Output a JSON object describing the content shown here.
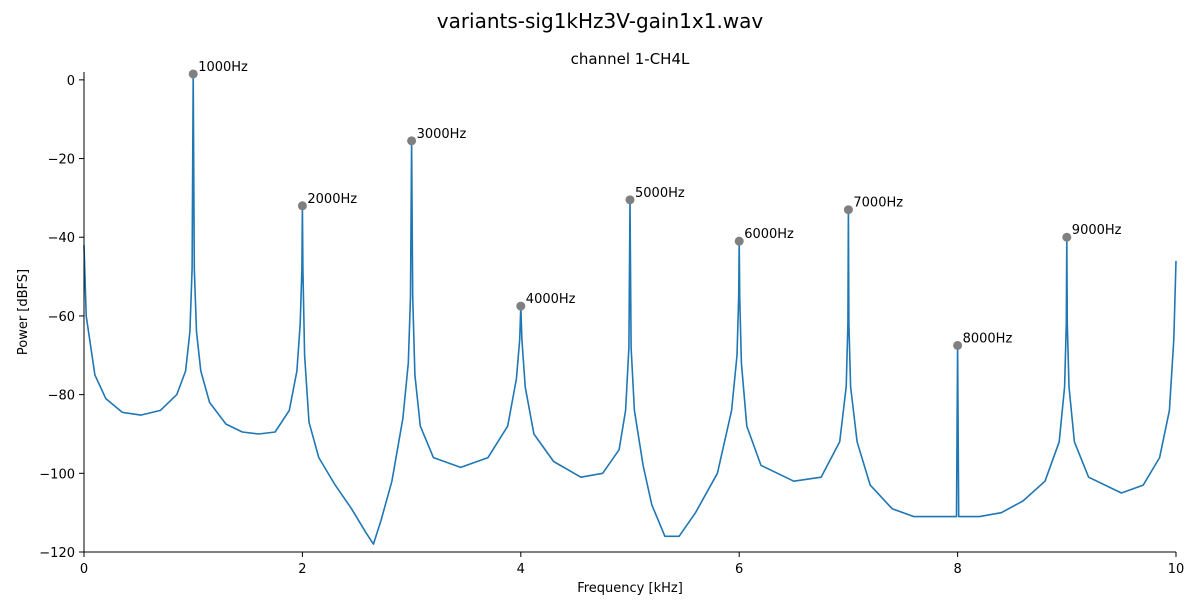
{
  "figure_title": "variants-sig1kHz3V-gain1x1.wav",
  "chart_data": {
    "type": "line",
    "title": "channel 1-CH4L",
    "xlabel": "Frequency [kHz]",
    "ylabel": "Power [dBFS]",
    "xlim": [
      0,
      10
    ],
    "ylim": [
      -120,
      2
    ],
    "xticks": [
      0,
      2,
      4,
      6,
      8,
      10
    ],
    "xtick_labels": [
      "0",
      "2",
      "4",
      "6",
      "8",
      "10"
    ],
    "yticks": [
      0,
      -20,
      -40,
      -60,
      -80,
      -100,
      -120
    ],
    "ytick_labels": [
      "0",
      "−20",
      "−40",
      "−60",
      "−80",
      "−100",
      "−120"
    ],
    "grid": false,
    "line_color": "#1f77b4",
    "marker_color": "#808080",
    "spectrum_profile": {
      "x": [
        0.0,
        0.02,
        0.1,
        0.2,
        0.35,
        0.52,
        0.7,
        0.85,
        0.93,
        0.97,
        0.99,
        1.0,
        1.01,
        1.03,
        1.07,
        1.15,
        1.3,
        1.45,
        1.6,
        1.75,
        1.88,
        1.95,
        1.98,
        1.995,
        2.0,
        2.005,
        2.02,
        2.06,
        2.15,
        2.3,
        2.45,
        2.58,
        2.65,
        2.72,
        2.82,
        2.92,
        2.97,
        2.99,
        3.0,
        3.01,
        3.03,
        3.08,
        3.2,
        3.45,
        3.7,
        3.88,
        3.96,
        3.99,
        4.0,
        4.01,
        4.04,
        4.12,
        4.3,
        4.55,
        4.75,
        4.9,
        4.96,
        4.99,
        5.0,
        5.01,
        5.04,
        5.12,
        5.2,
        5.32,
        5.45,
        5.6,
        5.8,
        5.93,
        5.98,
        5.995,
        6.0,
        6.005,
        6.02,
        6.07,
        6.2,
        6.5,
        6.75,
        6.92,
        6.98,
        6.995,
        7.0,
        7.005,
        7.02,
        7.08,
        7.2,
        7.4,
        7.6,
        7.8,
        7.99,
        8.0,
        8.01,
        8.2,
        8.4,
        8.6,
        8.8,
        8.93,
        8.98,
        8.995,
        9.0,
        9.005,
        9.02,
        9.07,
        9.2,
        9.5,
        9.7,
        9.85,
        9.94,
        9.98,
        10.0
      ],
      "y": [
        -42,
        -60,
        -75,
        -81,
        -84.5,
        -85.2,
        -84,
        -80,
        -74,
        -64,
        -48,
        1.5,
        -48,
        -64,
        -74,
        -82,
        -87.5,
        -89.5,
        -90,
        -89.5,
        -84,
        -74,
        -62,
        -48,
        -32,
        -48,
        -70,
        -87,
        -96,
        -103,
        -109,
        -115,
        -118,
        -112,
        -102,
        -86,
        -72,
        -55,
        -15.5,
        -55,
        -75,
        -88,
        -96,
        -98.5,
        -96,
        -88,
        -76,
        -66,
        -57.5,
        -66,
        -78,
        -90,
        -97,
        -101,
        -100,
        -94,
        -84,
        -68,
        -30.5,
        -68,
        -84,
        -98,
        -108,
        -116,
        -116,
        -110,
        -100,
        -84,
        -70,
        -55,
        -41,
        -55,
        -72,
        -88,
        -98,
        -102,
        -101,
        -92,
        -78,
        -62,
        -33,
        -62,
        -78,
        -92,
        -103,
        -109,
        -111,
        -111,
        -111,
        -67.5,
        -111,
        -111,
        -110,
        -107,
        -102,
        -92,
        -78,
        -62,
        -40,
        -62,
        -78,
        -92,
        -101,
        -105,
        -103,
        -96,
        -84,
        -66,
        -46
      ]
    },
    "peaks": [
      {
        "x": 1.0,
        "y": 1.5,
        "label": "1000Hz"
      },
      {
        "x": 2.0,
        "y": -32,
        "label": "2000Hz"
      },
      {
        "x": 3.0,
        "y": -15.5,
        "label": "3000Hz"
      },
      {
        "x": 4.0,
        "y": -57.5,
        "label": "4000Hz"
      },
      {
        "x": 5.0,
        "y": -30.5,
        "label": "5000Hz"
      },
      {
        "x": 6.0,
        "y": -41,
        "label": "6000Hz"
      },
      {
        "x": 7.0,
        "y": -33,
        "label": "7000Hz"
      },
      {
        "x": 8.0,
        "y": -67.5,
        "label": "8000Hz"
      },
      {
        "x": 9.0,
        "y": -40,
        "label": "9000Hz"
      }
    ]
  }
}
